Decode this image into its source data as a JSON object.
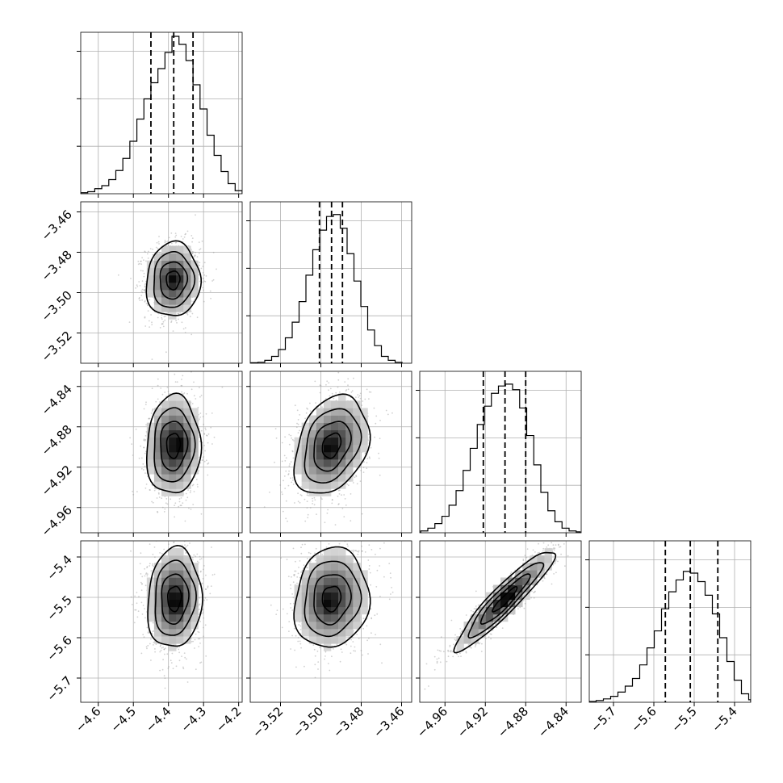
{
  "chart_data": {
    "type": "corner",
    "grid": true,
    "parameters": [
      {
        "range": [
          -4.65,
          -4.19
        ],
        "ticks": [
          -4.6,
          -4.5,
          -4.4,
          -4.3,
          -4.2
        ],
        "tick_labels": [
          "−4.6",
          "−4.5",
          "−4.4",
          "−4.3",
          "−4.2"
        ],
        "quantiles": [
          -4.45,
          -4.385,
          -4.33
        ],
        "hist": {
          "edges": [
            -4.65,
            -4.63,
            -4.61,
            -4.59,
            -4.57,
            -4.55,
            -4.53,
            -4.51,
            -4.49,
            -4.47,
            -4.45,
            -4.43,
            -4.41,
            -4.39,
            -4.37,
            -4.35,
            -4.33,
            -4.31,
            -4.29,
            -4.27,
            -4.25,
            -4.23,
            -4.21,
            -4.19
          ],
          "counts": [
            0.5,
            1,
            2.5,
            4,
            7,
            11.5,
            17.5,
            26,
            37,
            47,
            55,
            62,
            70,
            78,
            74,
            66,
            54,
            42,
            29,
            19,
            11,
            5,
            1.5
          ],
          "ymax": 80
        }
      },
      {
        "range": [
          -3.535,
          -3.455
        ],
        "ticks": [
          -3.52,
          -3.5,
          -3.48,
          -3.46
        ],
        "tick_labels": [
          "−3.52",
          "−3.50",
          "−3.48",
          "−3.46"
        ],
        "quantiles": [
          -3.5007,
          -3.4947,
          -3.4893
        ],
        "hist": {
          "edges": [
            -3.5346,
            -3.5312,
            -3.5278,
            -3.5244,
            -3.521,
            -3.5176,
            -3.5142,
            -3.5108,
            -3.5074,
            -3.504,
            -3.5006,
            -3.4972,
            -3.4938,
            -3.4904,
            -3.487,
            -3.4836,
            -3.4802,
            -3.4768,
            -3.4734,
            -3.47,
            -3.4666,
            -3.4632,
            -3.4598
          ],
          "counts": [
            0.5,
            1,
            3,
            7,
            14,
            26,
            42,
            63,
            90,
            116,
            136,
            150,
            152,
            138,
            112,
            84,
            58,
            34,
            18,
            7,
            3,
            1
          ],
          "ymax": 165
        }
      },
      {
        "range": [
          -4.985,
          -4.825
        ],
        "ticks": [
          -4.96,
          -4.92,
          -4.88,
          -4.84
        ],
        "tick_labels": [
          "−4.96",
          "−4.92",
          "−4.88",
          "−4.84"
        ],
        "quantiles": [
          -4.922,
          -4.9005,
          -4.88
        ],
        "hist": {
          "edges": [
            -4.984,
            -4.977,
            -4.97,
            -4.963,
            -4.956,
            -4.949,
            -4.942,
            -4.935,
            -4.928,
            -4.921,
            -4.914,
            -4.907,
            -4.9,
            -4.893,
            -4.886,
            -4.879,
            -4.872,
            -4.865,
            -4.858,
            -4.851,
            -4.844,
            -4.837,
            -4.83,
            -4.826
          ],
          "counts": [
            1,
            2.5,
            5,
            9,
            15,
            23,
            34,
            46,
            59,
            69,
            76,
            80,
            81,
            78,
            68,
            53,
            37,
            22,
            12,
            6,
            2.5,
            1,
            0.5
          ],
          "ymax": 88
        }
      },
      {
        "range": [
          -5.76,
          -5.36
        ],
        "ticks": [
          -5.7,
          -5.6,
          -5.5,
          -5.4
        ],
        "tick_labels": [
          "−5.7",
          "−5.6",
          "−5.5",
          "−5.4"
        ],
        "quantiles": [
          -5.5715,
          -5.5097,
          -5.4415
        ],
        "hist": {
          "edges": [
            -5.76,
            -5.743,
            -5.725,
            -5.707,
            -5.689,
            -5.671,
            -5.653,
            -5.635,
            -5.617,
            -5.599,
            -5.581,
            -5.563,
            -5.545,
            -5.527,
            -5.509,
            -5.491,
            -5.473,
            -5.455,
            -5.437,
            -5.419,
            -5.401,
            -5.383,
            -5.365,
            -5.36
          ],
          "counts": [
            0.5,
            1,
            2,
            3.5,
            6,
            9.5,
            14,
            22,
            32,
            42,
            55,
            65,
            72,
            77,
            76,
            71,
            63,
            52,
            38,
            24,
            13,
            5,
            1.5
          ],
          "ymax": 95
        }
      }
    ],
    "pairs": [
      {
        "row": 1,
        "col": 0,
        "mean": [
          -4.387,
          -3.4938
        ],
        "sd": [
          0.0385,
          0.0092
        ],
        "rho": 0.05,
        "peak": [
          -4.382,
          -3.493
        ]
      },
      {
        "row": 2,
        "col": 0,
        "mean": [
          -4.386,
          -4.8985
        ],
        "sd": [
          0.0385,
          0.0245
        ],
        "rho": 0.05,
        "peak": [
          -4.358,
          -4.8975
        ]
      },
      {
        "row": 2,
        "col": 1,
        "mean": [
          -3.4947,
          -4.8985
        ],
        "sd": [
          0.0092,
          0.0245
        ],
        "rho": 0.3,
        "peak": [
          -3.4955,
          -4.901
        ]
      },
      {
        "row": 3,
        "col": 0,
        "mean": [
          -4.383,
          -5.503
        ],
        "sd": [
          0.0385,
          0.062
        ],
        "rho": 0.08,
        "peak": [
          -4.375,
          -5.515
        ]
      },
      {
        "row": 3,
        "col": 1,
        "mean": [
          -3.4947,
          -5.503
        ],
        "sd": [
          0.0092,
          0.062
        ],
        "rho": 0.1,
        "peak": [
          -3.4965,
          -5.515
        ]
      },
      {
        "row": 3,
        "col": 2,
        "mean": [
          -4.9007,
          -5.5055
        ],
        "sd": [
          0.0245,
          0.062
        ],
        "rho": 0.93,
        "peak": [
          -4.899,
          -5.495
        ]
      }
    ]
  }
}
